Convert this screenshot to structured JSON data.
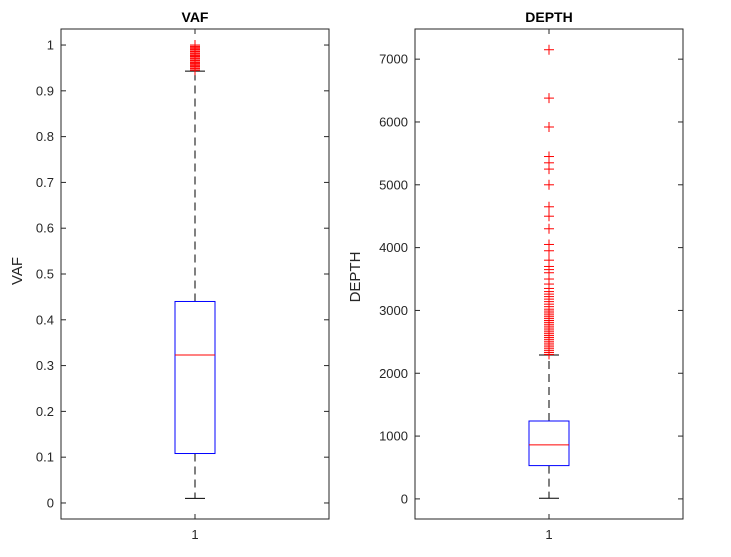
{
  "colors": {
    "box": "#0000ff",
    "median": "#ff0000",
    "outlier": "#ff0000",
    "whisker": "#000000",
    "axes": "#262626"
  },
  "chart_data": [
    {
      "type": "boxplot",
      "title": "VAF",
      "ylabel": "VAF",
      "xlabel": "",
      "categories": [
        "1"
      ],
      "ylim": [
        -0.035,
        1.035
      ],
      "yticks": [
        0,
        0.1,
        0.2,
        0.3,
        0.4,
        0.5,
        0.6,
        0.7,
        0.8,
        0.9,
        1
      ],
      "ytick_labels": [
        "0",
        "0.1",
        "0.2",
        "0.3",
        "0.4",
        "0.5",
        "0.6",
        "0.7",
        "0.8",
        "0.9",
        "1"
      ],
      "box": {
        "whisker_low": 0.01,
        "q1": 0.108,
        "median": 0.323,
        "q3": 0.44,
        "whisker_high": 0.943
      },
      "outliers": [
        0.945,
        0.948,
        0.95,
        0.953,
        0.955,
        0.958,
        0.96,
        0.962,
        0.965,
        0.967,
        0.97,
        0.972,
        0.975,
        0.977,
        0.98,
        0.982,
        0.985,
        0.987,
        0.99,
        0.992,
        0.995,
        0.997,
        1.0
      ],
      "grid": false
    },
    {
      "type": "boxplot",
      "title": "DEPTH",
      "ylabel": "DEPTH",
      "xlabel": "",
      "categories": [
        "1"
      ],
      "ylim": [
        -320,
        7480
      ],
      "yticks": [
        0,
        1000,
        2000,
        3000,
        4000,
        5000,
        6000,
        7000
      ],
      "ytick_labels": [
        "0",
        "1000",
        "2000",
        "3000",
        "4000",
        "5000",
        "6000",
        "7000"
      ],
      "box": {
        "whisker_low": 10,
        "q1": 530,
        "median": 860,
        "q3": 1240,
        "whisker_high": 2290
      },
      "outliers": [
        2300,
        2330,
        2360,
        2390,
        2420,
        2450,
        2480,
        2510,
        2540,
        2570,
        2600,
        2630,
        2660,
        2690,
        2720,
        2750,
        2780,
        2810,
        2840,
        2870,
        2900,
        2930,
        2960,
        2990,
        3020,
        3060,
        3100,
        3140,
        3180,
        3220,
        3260,
        3300,
        3350,
        3420,
        3500,
        3600,
        3650,
        3700,
        3800,
        3950,
        4050,
        4300,
        4500,
        4650,
        5000,
        5250,
        5350,
        5450,
        5920,
        6380,
        7150
      ],
      "grid": false
    }
  ]
}
